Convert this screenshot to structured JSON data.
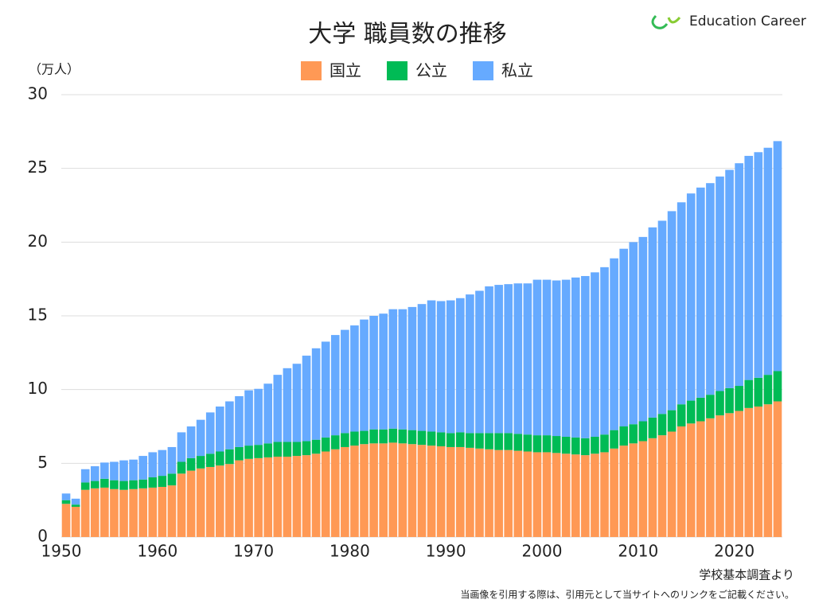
{
  "brand": "Education Career",
  "chart_data": {
    "type": "bar",
    "stacked": true,
    "title": "大学 職員数の推移",
    "y_unit": "（万人）",
    "source": "学校基本調査より",
    "note": "当画像を引用する際は、引用元として当サイトへのリンクをご記載ください。",
    "x": [
      1950,
      1951,
      1952,
      1953,
      1954,
      1955,
      1956,
      1957,
      1958,
      1959,
      1960,
      1961,
      1962,
      1963,
      1964,
      1965,
      1966,
      1967,
      1968,
      1969,
      1970,
      1971,
      1972,
      1973,
      1974,
      1975,
      1976,
      1977,
      1978,
      1979,
      1980,
      1981,
      1982,
      1983,
      1984,
      1985,
      1986,
      1987,
      1988,
      1989,
      1990,
      1991,
      1992,
      1993,
      1994,
      1995,
      1996,
      1997,
      1998,
      1999,
      2000,
      2001,
      2002,
      2003,
      2004,
      2005,
      2006,
      2007,
      2008,
      2009,
      2010,
      2011,
      2012,
      2013,
      2014,
      2015,
      2016,
      2017,
      2018,
      2019,
      2020,
      2021,
      2022,
      2023,
      2024
    ],
    "xlim": [
      1950,
      2025
    ],
    "xticks": [
      1950,
      1960,
      1970,
      1980,
      1990,
      2000,
      2010,
      2020
    ],
    "ylim": [
      0,
      30
    ],
    "yticks": [
      0,
      5,
      10,
      15,
      20,
      25,
      30
    ],
    "grid": true,
    "series": [
      {
        "name": "国立",
        "color": "#ff9955",
        "values": [
          2.25,
          2.05,
          3.2,
          3.3,
          3.35,
          3.25,
          3.2,
          3.25,
          3.3,
          3.35,
          3.4,
          3.5,
          4.3,
          4.5,
          4.65,
          4.75,
          4.85,
          4.95,
          5.2,
          5.3,
          5.35,
          5.4,
          5.45,
          5.45,
          5.5,
          5.55,
          5.65,
          5.8,
          5.95,
          6.1,
          6.2,
          6.3,
          6.35,
          6.35,
          6.4,
          6.35,
          6.3,
          6.25,
          6.2,
          6.15,
          6.1,
          6.1,
          6.05,
          6.0,
          5.95,
          5.9,
          5.9,
          5.85,
          5.8,
          5.75,
          5.75,
          5.7,
          5.65,
          5.6,
          5.55,
          5.65,
          5.75,
          6.0,
          6.2,
          6.35,
          6.5,
          6.7,
          6.9,
          7.15,
          7.5,
          7.7,
          7.85,
          8.05,
          8.25,
          8.4,
          8.55,
          8.75,
          8.85,
          9.0,
          9.2
        ]
      },
      {
        "name": "公立",
        "color": "#00bb55",
        "values": [
          0.25,
          0.15,
          0.5,
          0.5,
          0.6,
          0.6,
          0.6,
          0.6,
          0.6,
          0.7,
          0.75,
          0.8,
          0.8,
          0.85,
          0.85,
          0.9,
          0.95,
          1.0,
          0.9,
          0.9,
          0.9,
          0.95,
          1.0,
          1.0,
          0.95,
          0.95,
          0.95,
          0.95,
          0.95,
          0.95,
          0.95,
          0.9,
          0.95,
          0.95,
          0.95,
          0.95,
          0.95,
          0.95,
          0.95,
          0.95,
          0.95,
          1.0,
          1.0,
          1.05,
          1.1,
          1.15,
          1.15,
          1.15,
          1.15,
          1.15,
          1.15,
          1.15,
          1.15,
          1.15,
          1.15,
          1.15,
          1.2,
          1.25,
          1.3,
          1.3,
          1.35,
          1.4,
          1.45,
          1.45,
          1.5,
          1.55,
          1.6,
          1.6,
          1.65,
          1.7,
          1.7,
          1.9,
          1.95,
          2.0,
          2.05
        ]
      },
      {
        "name": "私立",
        "color": "#66aaff",
        "values": [
          0.45,
          0.4,
          0.9,
          1.0,
          1.1,
          1.25,
          1.4,
          1.4,
          1.6,
          1.7,
          1.75,
          1.8,
          2.0,
          2.15,
          2.45,
          2.8,
          3.05,
          3.25,
          3.45,
          3.75,
          3.8,
          4.05,
          4.55,
          5.0,
          5.3,
          5.8,
          6.2,
          6.5,
          6.8,
          7.0,
          7.2,
          7.55,
          7.7,
          7.85,
          8.1,
          8.15,
          8.35,
          8.6,
          8.9,
          8.9,
          9.0,
          9.1,
          9.4,
          9.65,
          9.95,
          10.05,
          10.1,
          10.2,
          10.25,
          10.55,
          10.55,
          10.55,
          10.65,
          10.85,
          11.0,
          11.15,
          11.35,
          11.65,
          12.05,
          12.35,
          12.5,
          12.9,
          13.1,
          13.5,
          13.7,
          14.05,
          14.25,
          14.35,
          14.55,
          14.8,
          15.1,
          15.2,
          15.3,
          15.4,
          15.6
        ]
      }
    ]
  }
}
